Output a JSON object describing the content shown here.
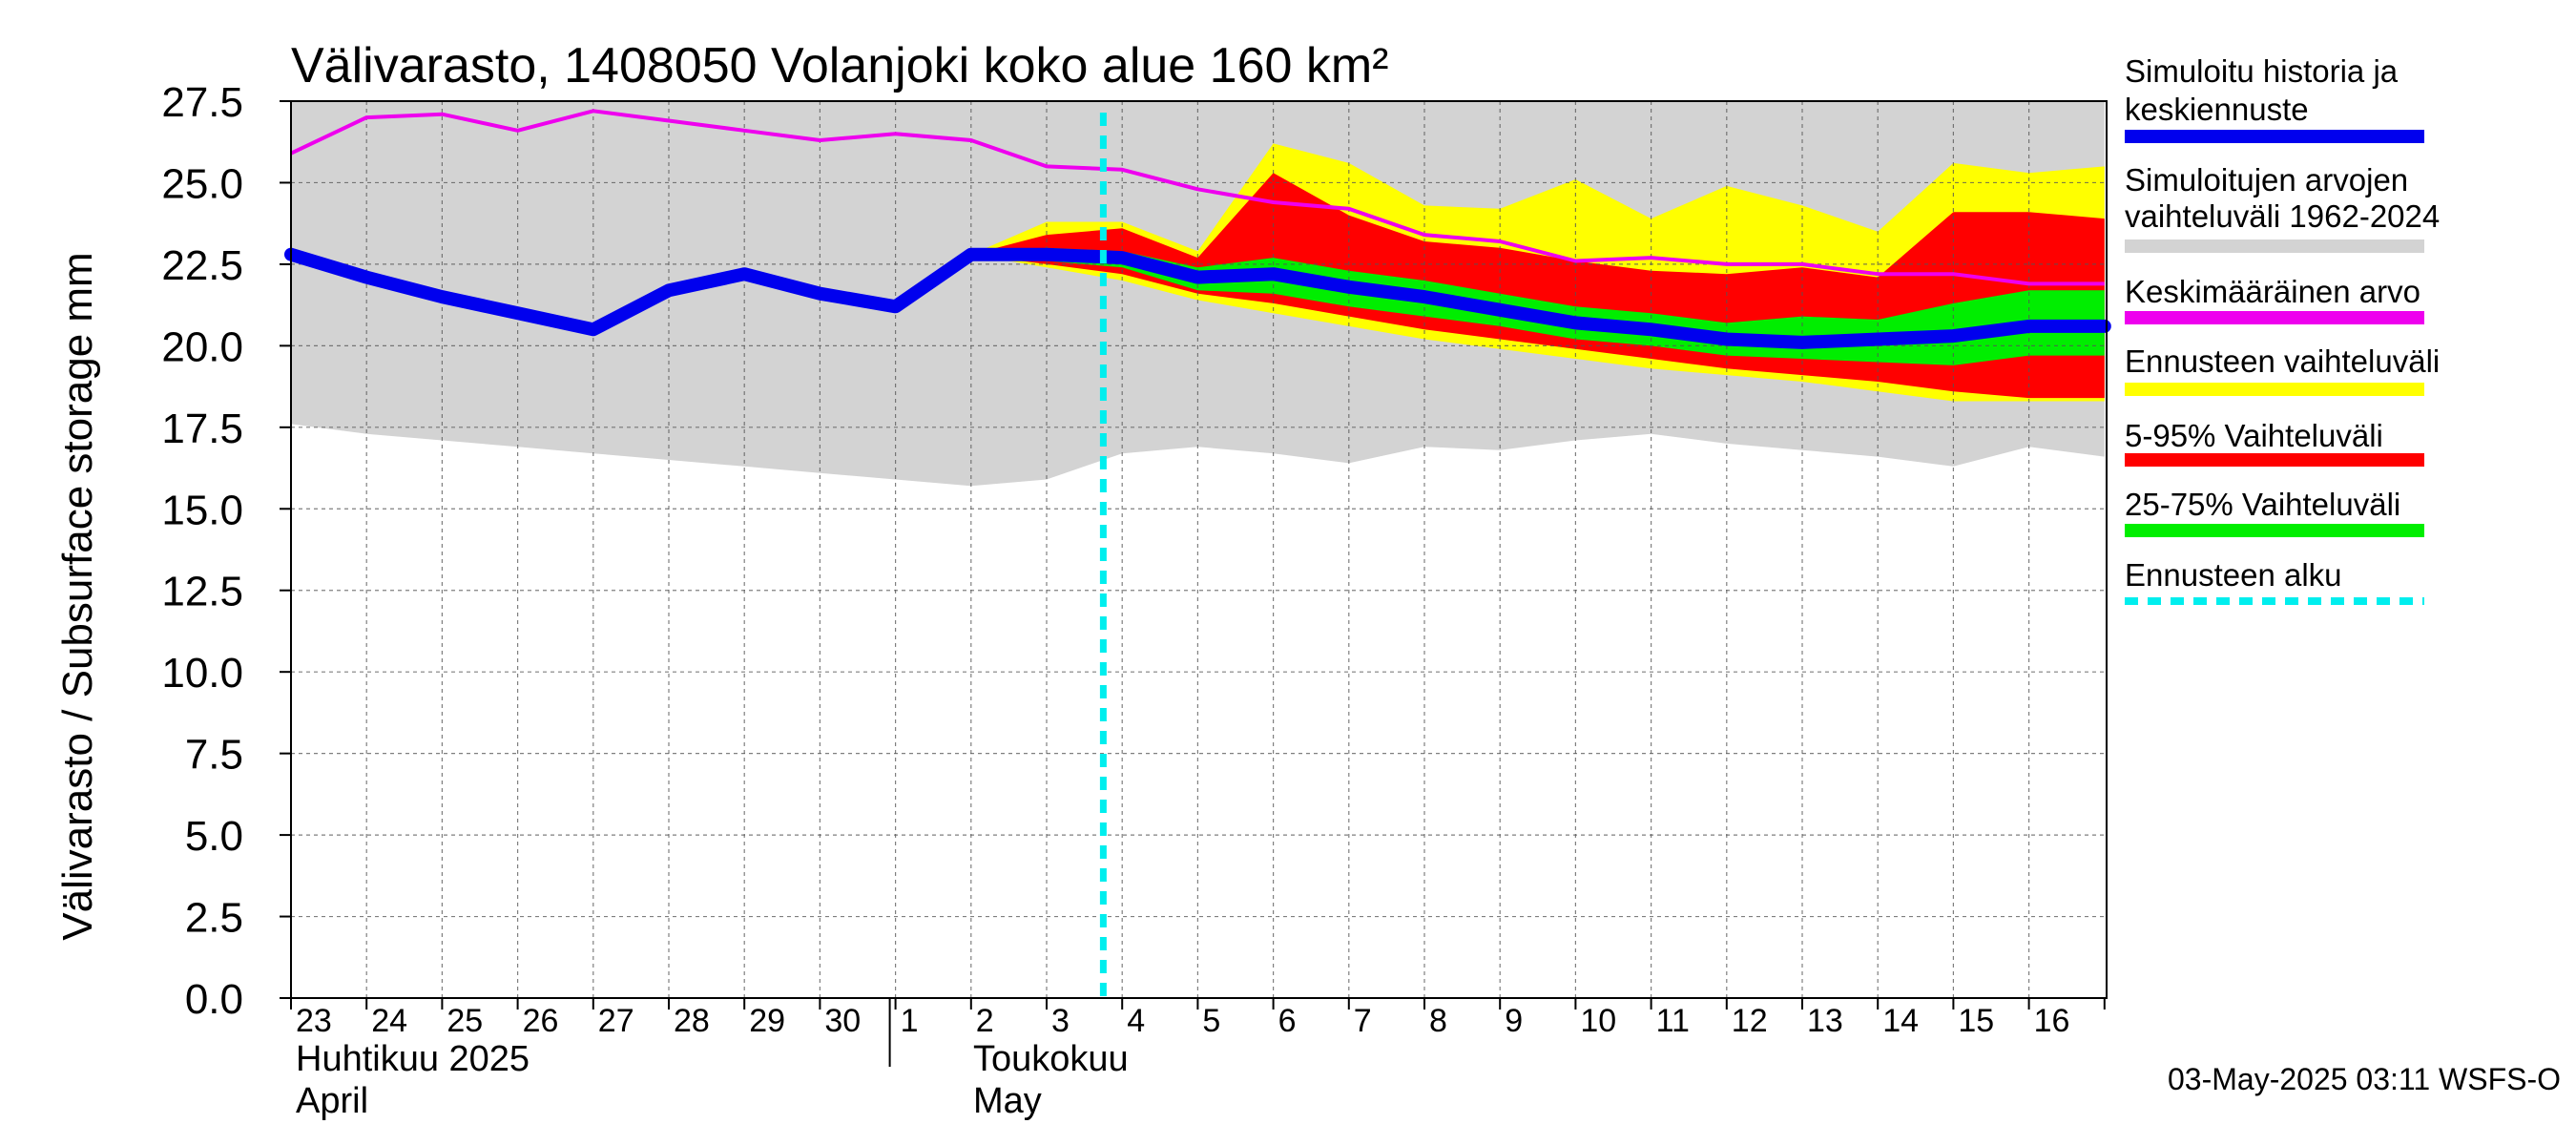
{
  "chart_data": {
    "type": "area",
    "title": "Välivarasto, 1408050 Volanjoki koko alue 160 km²",
    "ylabel": "Välivarasto / Subsurface storage  mm",
    "ylim": [
      0,
      27.5
    ],
    "yticks": [
      "0.0",
      "2.5",
      "5.0",
      "7.5",
      "10.0",
      "12.5",
      "15.0",
      "17.5",
      "20.0",
      "22.5",
      "25.0",
      "27.5"
    ],
    "x_day_labels": [
      "23",
      "24",
      "25",
      "26",
      "27",
      "28",
      "29",
      "30",
      "1",
      "2",
      "3",
      "4",
      "5",
      "6",
      "7",
      "8",
      "9",
      "10",
      "11",
      "12",
      "13",
      "14",
      "15",
      "16"
    ],
    "month_labels": [
      {
        "fi": "Huhtikuu  2025",
        "en": "April"
      },
      {
        "fi": "Toukokuu",
        "en": "May"
      }
    ],
    "forecast_start_day": 10.75,
    "historical_range": {
      "day": [
        0,
        1,
        2,
        3,
        4,
        5,
        6,
        7,
        8,
        9,
        10,
        11,
        12,
        13,
        14,
        15,
        16,
        17,
        18,
        19,
        20,
        21,
        22,
        23,
        24
      ],
      "min": [
        17.6,
        17.3,
        17.1,
        16.9,
        16.7,
        16.5,
        16.3,
        16.1,
        15.9,
        15.7,
        15.9,
        16.7,
        16.9,
        16.7,
        16.4,
        16.9,
        16.8,
        17.1,
        17.3,
        17.0,
        16.8,
        16.6,
        16.3,
        16.9,
        16.6
      ],
      "max": [
        27.5,
        27.5,
        27.5,
        27.5,
        27.5,
        27.5,
        27.5,
        27.5,
        27.5,
        27.5,
        27.5,
        27.5,
        27.5,
        27.5,
        27.5,
        27.5,
        27.5,
        27.5,
        27.5,
        27.5,
        27.5,
        27.5,
        27.5,
        27.5,
        27.5
      ]
    },
    "forecast_range": {
      "day": [
        9,
        10,
        11,
        12,
        13,
        14,
        15,
        16,
        17,
        18,
        19,
        20,
        21,
        22,
        23,
        24
      ],
      "min": [
        22.8,
        22.4,
        22.0,
        21.4,
        21.0,
        20.6,
        20.2,
        19.9,
        19.6,
        19.3,
        19.1,
        18.9,
        18.6,
        18.3,
        18.3,
        18.3
      ],
      "max": [
        22.8,
        23.8,
        23.8,
        22.9,
        26.2,
        25.6,
        24.3,
        24.2,
        25.1,
        23.9,
        24.9,
        24.3,
        23.5,
        25.6,
        25.3,
        25.5
      ]
    },
    "range_5_95": {
      "day": [
        9,
        10,
        11,
        12,
        13,
        14,
        15,
        16,
        17,
        18,
        19,
        20,
        21,
        22,
        23,
        24
      ],
      "min": [
        22.8,
        22.5,
        22.2,
        21.6,
        21.3,
        20.9,
        20.5,
        20.2,
        19.9,
        19.6,
        19.3,
        19.1,
        18.9,
        18.6,
        18.4,
        18.4
      ],
      "max": [
        22.8,
        23.4,
        23.6,
        22.7,
        25.3,
        24.0,
        23.2,
        23.0,
        22.6,
        22.3,
        22.2,
        22.4,
        22.1,
        24.1,
        24.1,
        23.9
      ]
    },
    "range_25_75": {
      "day": [
        9,
        10,
        11,
        12,
        13,
        14,
        15,
        16,
        17,
        18,
        19,
        20,
        21,
        22,
        23,
        24
      ],
      "min": [
        22.7,
        22.6,
        22.4,
        21.7,
        21.6,
        21.2,
        20.9,
        20.6,
        20.2,
        20.0,
        19.7,
        19.6,
        19.5,
        19.4,
        19.7,
        19.7
      ],
      "max": [
        22.8,
        23.0,
        22.9,
        22.4,
        22.7,
        22.3,
        22.0,
        21.6,
        21.2,
        21.0,
        20.7,
        20.9,
        20.8,
        21.3,
        21.7,
        21.7
      ]
    },
    "series": [
      {
        "name": "Simuloitu historia ja keskiennuste",
        "color": "#0000ee",
        "day": [
          0,
          1,
          2,
          3,
          4,
          5,
          6,
          7,
          8,
          9,
          10,
          11,
          12,
          13,
          14,
          15,
          16,
          17,
          18,
          19,
          20,
          21,
          22,
          23,
          24
        ],
        "values": [
          22.8,
          22.1,
          21.5,
          21.0,
          20.5,
          21.7,
          22.2,
          21.6,
          21.2,
          22.8,
          22.8,
          22.7,
          22.1,
          22.2,
          21.8,
          21.5,
          21.1,
          20.7,
          20.5,
          20.2,
          20.1,
          20.2,
          20.3,
          20.6,
          20.6
        ]
      },
      {
        "name": "Keskimääräinen arvo",
        "color": "#ee00ee",
        "day": [
          0,
          1,
          2,
          3,
          4,
          5,
          6,
          7,
          8,
          9,
          10,
          11,
          12,
          13,
          14,
          15,
          16,
          17,
          18,
          19,
          20,
          21,
          22,
          23,
          24
        ],
        "values": [
          25.9,
          27.0,
          27.1,
          26.6,
          27.2,
          26.9,
          26.6,
          26.3,
          26.5,
          26.3,
          25.5,
          25.4,
          24.8,
          24.4,
          24.2,
          23.4,
          23.2,
          22.6,
          22.7,
          22.5,
          22.5,
          22.2,
          22.2,
          21.9,
          21.9
        ]
      }
    ],
    "legend": [
      {
        "label_lines": [
          "Simuloitu historia ja",
          "keskiennuste"
        ],
        "color": "#0000ee",
        "style": "solid"
      },
      {
        "label_lines": [
          "Simuloitujen arvojen",
          "vaihteluväli 1962-2024"
        ],
        "color": "#d3d3d3",
        "style": "solid"
      },
      {
        "label_lines": [
          "Keskimääräinen arvo"
        ],
        "color": "#ee00ee",
        "style": "solid"
      },
      {
        "label_lines": [
          "Ennusteen vaihteluväli"
        ],
        "color": "#ffff00",
        "style": "solid"
      },
      {
        "label_lines": [
          "5-95% Vaihteluväli"
        ],
        "color": "#ff0000",
        "style": "solid"
      },
      {
        "label_lines": [
          "25-75% Vaihteluväli"
        ],
        "color": "#00ee00",
        "style": "solid"
      },
      {
        "label_lines": [
          "Ennusteen alku"
        ],
        "color": "#00eeee",
        "style": "dashed"
      }
    ],
    "footer": "03-May-2025 03:11 WSFS-O"
  }
}
